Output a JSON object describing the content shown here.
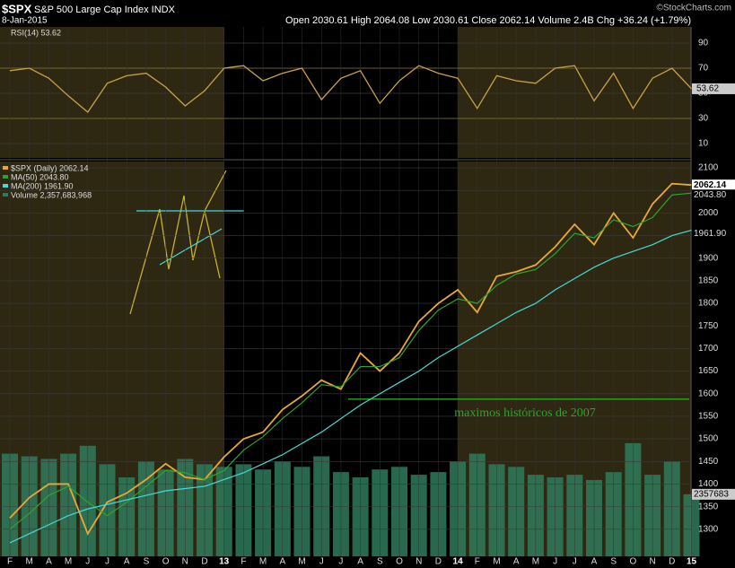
{
  "chart_data": {
    "type": "stock",
    "title": "$SPX",
    "subtitle": "S&P 500 Large Cap Index INDX",
    "watermark": "©StockCharts.com",
    "date": "8-Jan-2015",
    "quote": "Open 2030.61  High 2064.08  Low 2030.61  Close 2062.14  Volume 2.4B  Chg +36.24 (+1.79%)",
    "categories": [
      "F",
      "M",
      "A",
      "M",
      "J",
      "J",
      "A",
      "S",
      "O",
      "N",
      "D",
      "13",
      "F",
      "M",
      "A",
      "M",
      "J",
      "J",
      "A",
      "S",
      "O",
      "N",
      "D",
      "14",
      "F",
      "M",
      "A",
      "M",
      "J",
      "J",
      "A",
      "S",
      "O",
      "N",
      "D",
      "15"
    ],
    "ylim": [
      1240,
      2114
    ],
    "yticks": [
      1300,
      1350,
      1400,
      1450,
      1500,
      1550,
      1600,
      1650,
      1700,
      1750,
      1800,
      1850,
      1900,
      1950,
      2000,
      2050,
      2100
    ],
    "series": [
      {
        "name": "$SPX (Daily) 2062.14",
        "last_label": "2062.14",
        "color": "#e8a838",
        "values": [
          1325,
          1370,
          1400,
          1400,
          1290,
          1360,
          1380,
          1410,
          1445,
          1415,
          1410,
          1460,
          1500,
          1515,
          1565,
          1595,
          1630,
          1610,
          1690,
          1650,
          1690,
          1760,
          1800,
          1830,
          1780,
          1860,
          1870,
          1885,
          1925,
          1975,
          1930,
          2000,
          1945,
          2020,
          2065,
          2062
        ]
      },
      {
        "name": "MA(50) 2043.80",
        "last_label": "2043.80",
        "color": "#2fa32f",
        "values": [
          1300,
          1335,
          1375,
          1395,
          1360,
          1330,
          1360,
          1395,
          1430,
          1425,
          1410,
          1430,
          1475,
          1505,
          1545,
          1580,
          1620,
          1615,
          1660,
          1660,
          1680,
          1740,
          1785,
          1810,
          1800,
          1840,
          1865,
          1875,
          1910,
          1955,
          1945,
          1985,
          1970,
          1990,
          2040,
          2044
        ]
      },
      {
        "name": "MA(200) 1961.90",
        "last_label": "1961.90",
        "color": "#48d8d8",
        "values": [
          1270,
          1290,
          1310,
          1330,
          1345,
          1355,
          1365,
          1375,
          1385,
          1390,
          1395,
          1410,
          1425,
          1445,
          1465,
          1490,
          1515,
          1545,
          1575,
          1600,
          1625,
          1650,
          1680,
          1705,
          1730,
          1755,
          1780,
          1800,
          1830,
          1855,
          1880,
          1900,
          1915,
          1930,
          1950,
          1962
        ]
      }
    ],
    "volume": {
      "name": "Volume 2,357,683,968",
      "last_label": "2357683",
      "color": "#2f7a5c",
      "ylim": [
        0,
        15000000000
      ],
      "values": [
        3900000000,
        3800000000,
        3700000000,
        3900000000,
        4200000000,
        3500000000,
        3000000000,
        3600000000,
        3300000000,
        3700000000,
        3500000000,
        3400000000,
        3500000000,
        3300000000,
        3600000000,
        3400000000,
        3800000000,
        3200000000,
        3000000000,
        3300000000,
        3400000000,
        3100000000,
        3200000000,
        3600000000,
        3900000000,
        3500000000,
        3400000000,
        3100000000,
        3000000000,
        3100000000,
        2900000000,
        3200000000,
        4300000000,
        3100000000,
        3600000000,
        2357683968
      ]
    },
    "rsi": {
      "name": "RSI(14) 53.62",
      "last_label": "53.62",
      "color": "#c8a24a",
      "ylim": [
        0,
        100
      ],
      "yticks": [
        10,
        30,
        50,
        70,
        90
      ],
      "values": [
        68,
        70,
        62,
        48,
        35,
        58,
        64,
        66,
        55,
        40,
        52,
        70,
        72,
        60,
        66,
        70,
        45,
        62,
        68,
        42,
        60,
        72,
        66,
        62,
        38,
        64,
        60,
        58,
        70,
        72,
        44,
        66,
        38,
        62,
        70,
        53.62
      ]
    },
    "annotation": {
      "text": "maximos históricos de 2007",
      "value": 1588,
      "color": "#2fa32f"
    }
  }
}
